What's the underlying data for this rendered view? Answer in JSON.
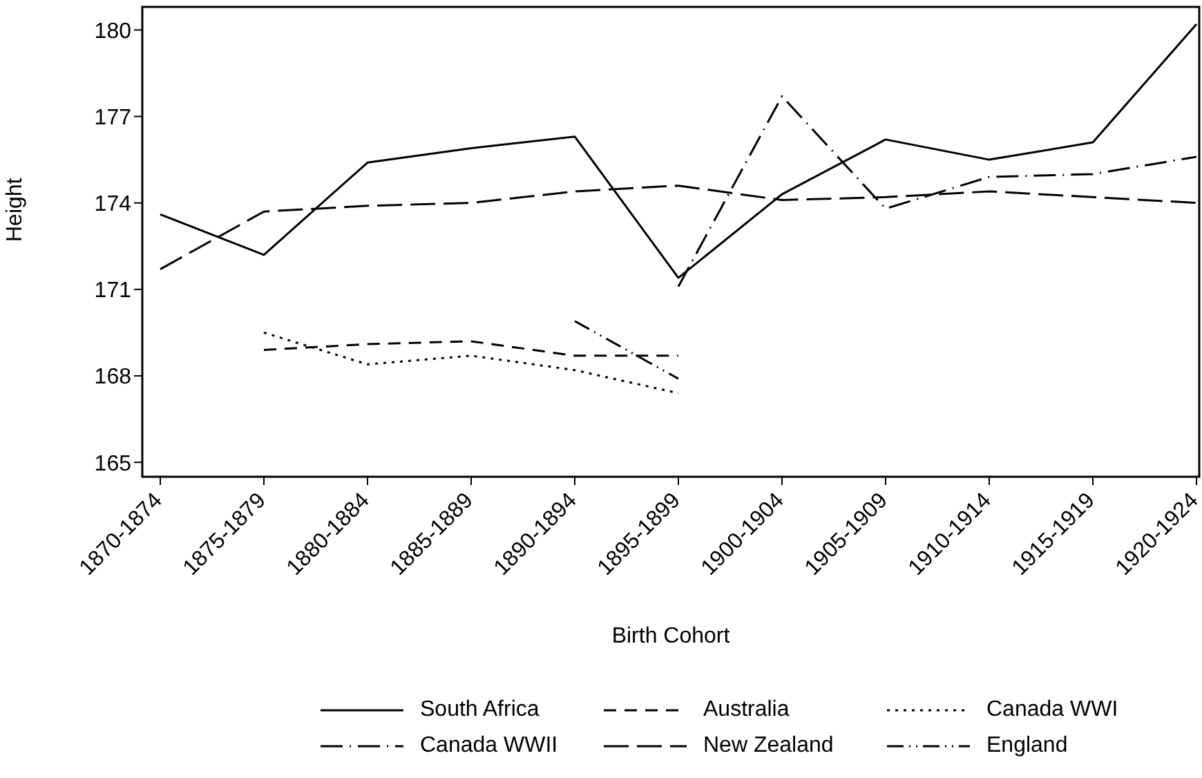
{
  "chart_data": {
    "type": "line",
    "xlabel": "Birth Cohort",
    "ylabel": "Height",
    "categories": [
      "1870-1874",
      "1875-1879",
      "1880-1884",
      "1885-1889",
      "1890-1894",
      "1895-1899",
      "1900-1904",
      "1905-1909",
      "1910-1914",
      "1915-1919",
      "1920-1924"
    ],
    "series": [
      {
        "name": "South Africa",
        "color": "#000000",
        "line_style": "solid",
        "values": [
          173.6,
          172.2,
          175.4,
          175.9,
          176.3,
          171.4,
          174.3,
          176.2,
          175.5,
          176.1,
          180.2
        ]
      },
      {
        "name": "Australia",
        "color": "#000000",
        "line_style": "dashed",
        "values": [
          null,
          168.9,
          169.1,
          169.2,
          168.7,
          168.7,
          null,
          null,
          null,
          null,
          null
        ]
      },
      {
        "name": "Canada WWI",
        "color": "#000000",
        "line_style": "dotted",
        "values": [
          null,
          169.5,
          168.4,
          168.7,
          168.2,
          167.4,
          null,
          null,
          null,
          null,
          null
        ]
      },
      {
        "name": "Canada WWII",
        "color": "#000000",
        "line_style": "dashdot",
        "values": [
          null,
          null,
          null,
          null,
          null,
          171.1,
          177.7,
          173.8,
          174.9,
          175.0,
          175.6
        ]
      },
      {
        "name": "New Zealand",
        "color": "#000000",
        "line_style": "longdash",
        "values": [
          171.7,
          173.7,
          173.9,
          174.0,
          174.4,
          174.6,
          174.1,
          174.2,
          174.4,
          174.2,
          174.0
        ]
      },
      {
        "name": "England",
        "color": "#000000",
        "line_style": "dashdotdot",
        "values": [
          null,
          null,
          null,
          null,
          169.9,
          167.9,
          null,
          null,
          null,
          null,
          null
        ]
      }
    ],
    "ylim": [
      164.5,
      180.8
    ],
    "yticks": [
      165,
      168,
      171,
      174,
      177,
      180
    ],
    "grid": false,
    "legend": "bottom",
    "marker": "none"
  }
}
